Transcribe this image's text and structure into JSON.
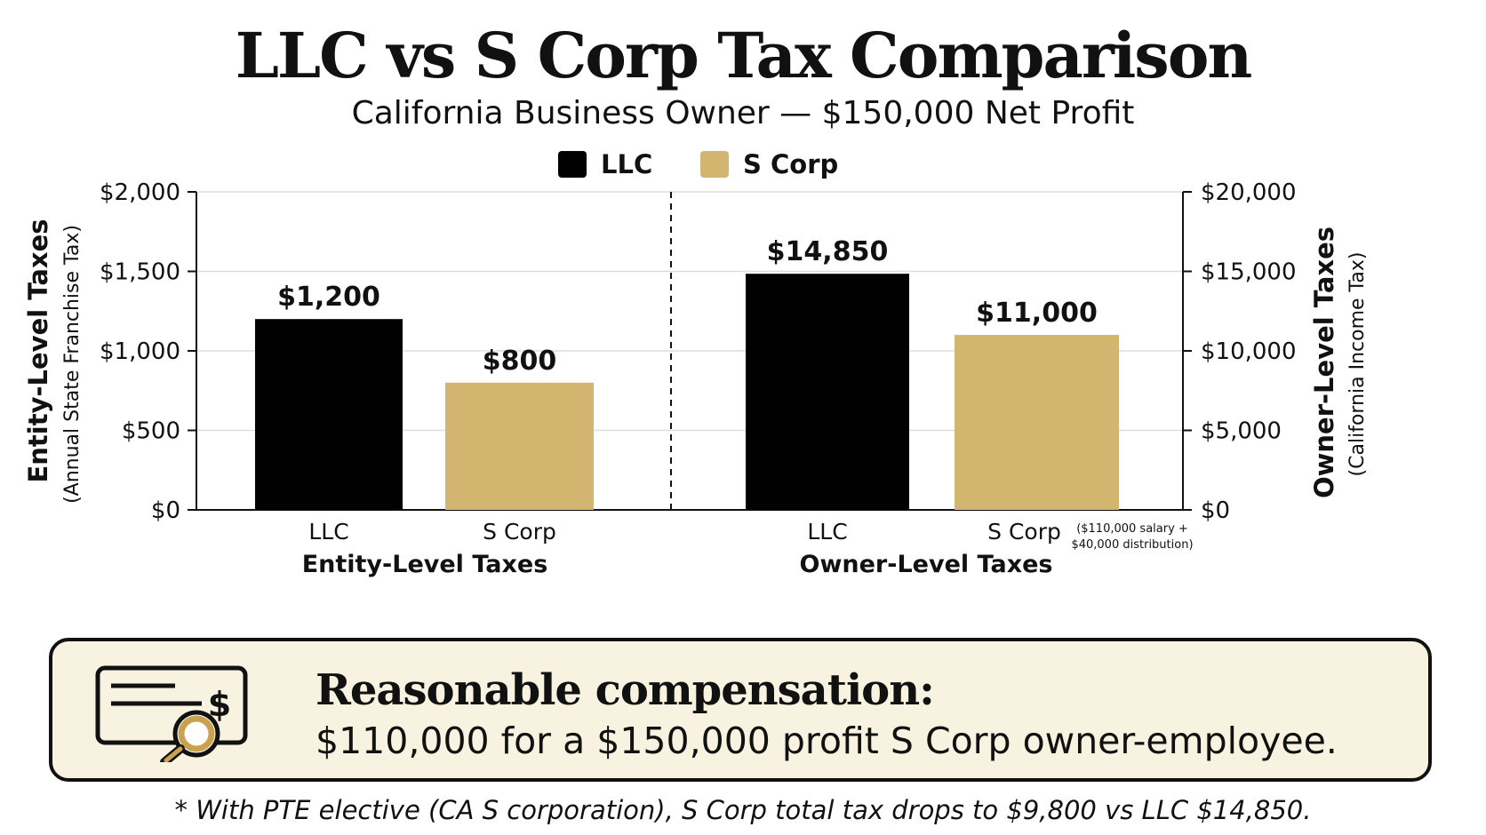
{
  "chart_data": {
    "type": "bar",
    "title": "LLC vs S Corp Tax Comparison",
    "subtitle": "California Business Owner — $150,000 Net Profit",
    "legend": {
      "placement": "top-center",
      "entries": [
        {
          "name": "LLC",
          "color": "#000000"
        },
        {
          "name": "S Corp",
          "color": "#d2b56e"
        }
      ]
    },
    "grid": true,
    "panels": [
      {
        "key": "entity",
        "group_label": "Entity-Level Taxes",
        "axis_side": "left",
        "ylabel": "Entity-Level Taxes",
        "ylabel_sub": "(Annual State Franchise Tax)",
        "ylim": [
          0,
          2000
        ],
        "yticks": [
          0,
          500,
          1000,
          1500,
          2000
        ],
        "ytick_labels": [
          "$0",
          "$500",
          "$1,000",
          "$1,500",
          "$2,000"
        ],
        "bars": [
          {
            "category": "LLC",
            "value": 1200,
            "value_label": "$1,200",
            "color": "#000000",
            "note": ""
          },
          {
            "category": "S Corp",
            "value": 800,
            "value_label": "$800",
            "color": "#d2b56e",
            "note": ""
          }
        ]
      },
      {
        "key": "owner",
        "group_label": "Owner-Level Taxes",
        "axis_side": "right",
        "ylabel": "Owner-Level Taxes",
        "ylabel_sub": "(California Income Tax)",
        "ylim": [
          0,
          20000
        ],
        "yticks": [
          0,
          5000,
          10000,
          15000,
          20000
        ],
        "ytick_labels": [
          "$0",
          "$5,000",
          "$10,000",
          "$15,000",
          "$20,000"
        ],
        "bars": [
          {
            "category": "LLC",
            "value": 14850,
            "value_label": "$14,850",
            "color": "#000000",
            "note": ""
          },
          {
            "category": "S Corp",
            "value": 11000,
            "value_label": "$11,000",
            "color": "#d2b56e",
            "note": "($110,000 salary + $40,000 distribution)"
          }
        ]
      }
    ]
  },
  "compensation": {
    "title": "Reasonable compensation:",
    "text": "$110,000 for a $150,000 profit S Corp owner-employee.",
    "icon": "check-magnifier-icon"
  },
  "footnote": "* With PTE elective (CA S corporation), S Corp total tax drops to $9,800 vs LLC $14,850."
}
